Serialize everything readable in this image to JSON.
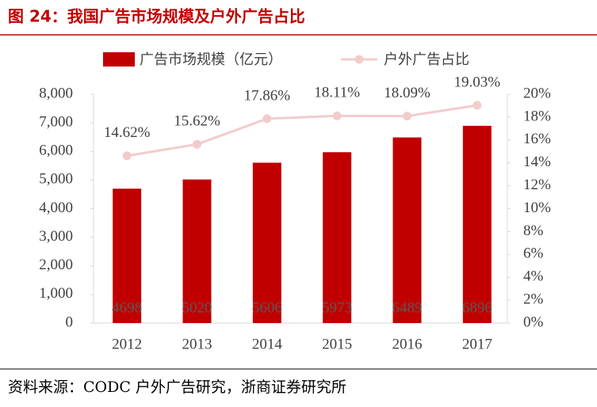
{
  "chart_data": {
    "type": "bar",
    "title": "图 24：我国广告市场规模及户外广告占比",
    "source": "资料来源：CODC 户外广告研究，浙商证券研究所",
    "categories": [
      "2012",
      "2013",
      "2014",
      "2015",
      "2016",
      "2017"
    ],
    "series": [
      {
        "name": "广告市场规模（亿元）",
        "type": "bar",
        "color": "#c00000",
        "values": [
          4698,
          5020,
          5606,
          5973,
          6489,
          6896
        ]
      },
      {
        "name": "户外广告占比",
        "type": "line",
        "axis": "y2",
        "color": "#f2cccc",
        "values": [
          14.62,
          15.62,
          17.86,
          18.11,
          18.09,
          19.03
        ],
        "value_labels": [
          "14.62%",
          "15.62%",
          "17.86%",
          "18.11%",
          "18.09%",
          "19.03%"
        ]
      }
    ],
    "ylim": [
      0,
      8000
    ],
    "yticks": [
      0,
      {
        "value": 1000,
        "label": "1,000"
      },
      {
        "value": 2000,
        "label": "2,000"
      },
      {
        "value": 3000,
        "label": "3,000"
      },
      {
        "value": 4000,
        "label": "4,000"
      },
      {
        "value": 5000,
        "label": "5,000"
      },
      {
        "value": 6000,
        "label": "6,000"
      },
      {
        "value": 7000,
        "label": "7,000"
      },
      {
        "value": 8000,
        "label": "8,000"
      }
    ],
    "y2lim": [
      0,
      20
    ],
    "y2ticks": [
      {
        "value": 0,
        "label": "0%"
      },
      {
        "value": 2,
        "label": "2%"
      },
      {
        "value": 4,
        "label": "4%"
      },
      {
        "value": 6,
        "label": "6%"
      },
      {
        "value": 8,
        "label": "8%"
      },
      {
        "value": 10,
        "label": "10%"
      },
      {
        "value": 12,
        "label": "12%"
      },
      {
        "value": 14,
        "label": "14%"
      },
      {
        "value": 16,
        "label": "16%"
      },
      {
        "value": 18,
        "label": "18%"
      },
      {
        "value": 20,
        "label": "20%"
      }
    ]
  }
}
